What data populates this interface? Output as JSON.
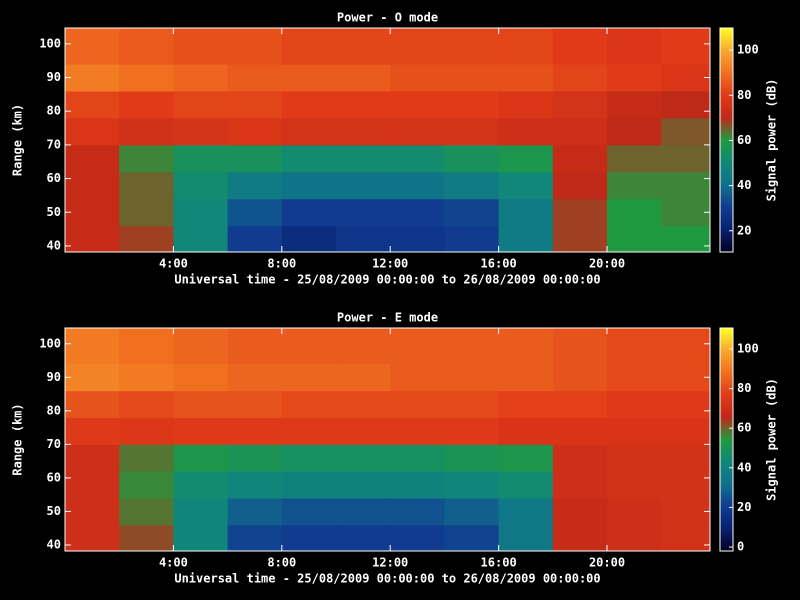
{
  "chart_data": [
    {
      "type": "heatmap",
      "title": "Power - O mode",
      "xlabel": "Universal time - 25/08/2009 00:00:00 to 26/08/2009 00:00:00",
      "ylabel": "Range (km)",
      "colorbar_label": "Signal power (dB)",
      "x": [
        1,
        3,
        5,
        7,
        9,
        11,
        13,
        15,
        17,
        19,
        21,
        23
      ],
      "y": [
        42,
        50,
        58,
        66,
        74,
        82,
        90,
        98
      ],
      "values": [
        [
          72,
          68,
          50,
          30,
          25,
          28,
          28,
          30,
          45,
          68,
          60,
          60
        ],
        [
          72,
          65,
          50,
          35,
          30,
          30,
          30,
          32,
          45,
          68,
          60,
          62
        ],
        [
          72,
          65,
          52,
          45,
          42,
          42,
          42,
          45,
          50,
          70,
          62,
          62
        ],
        [
          72,
          62,
          55,
          55,
          52,
          52,
          52,
          55,
          58,
          72,
          65,
          65
        ],
        [
          78,
          75,
          76,
          78,
          76,
          76,
          76,
          76,
          74,
          74,
          70,
          66
        ],
        [
          82,
          80,
          82,
          82,
          80,
          80,
          80,
          80,
          78,
          76,
          72,
          70
        ],
        [
          92,
          90,
          88,
          86,
          86,
          86,
          84,
          84,
          84,
          82,
          80,
          78
        ],
        [
          88,
          86,
          84,
          84,
          82,
          82,
          82,
          82,
          82,
          80,
          78,
          80
        ]
      ],
      "xlim": [
        0,
        23.8
      ],
      "ylim": [
        38.2,
        104.7
      ],
      "zlim": [
        10.6,
        109.8
      ],
      "xticks": [
        {
          "value": 4,
          "label": "4:00"
        },
        {
          "value": 8,
          "label": "8:00"
        },
        {
          "value": 12,
          "label": "12:00"
        },
        {
          "value": 16,
          "label": "16:00"
        },
        {
          "value": 20,
          "label": "20:00"
        }
      ],
      "yticks": [
        40,
        50,
        60,
        70,
        80,
        90,
        100
      ],
      "zticks": [
        20,
        40,
        60,
        80,
        100
      ],
      "colorscale": [
        "#000020",
        "#082070",
        "#103c90",
        "#10708c",
        "#108878",
        "#209a40",
        "#c02818",
        "#e03a18",
        "#f07020",
        "#f8a830",
        "#ffff20"
      ]
    },
    {
      "type": "heatmap",
      "title": "Power - E mode",
      "xlabel": "Universal time - 25/08/2009 00:00:00 to 26/08/2009 00:00:00",
      "ylabel": "Range (km)",
      "colorbar_label": "Signal power (dB)",
      "x": [
        1,
        3,
        5,
        7,
        9,
        11,
        13,
        15,
        17,
        19,
        21,
        23
      ],
      "y": [
        42,
        50,
        58,
        66,
        74,
        82,
        90,
        98
      ],
      "values": [
        [
          70,
          62,
          42,
          22,
          20,
          20,
          20,
          22,
          35,
          68,
          70,
          72
        ],
        [
          70,
          58,
          42,
          28,
          25,
          25,
          25,
          28,
          35,
          68,
          70,
          72
        ],
        [
          70,
          56,
          45,
          42,
          40,
          40,
          40,
          42,
          45,
          70,
          72,
          72
        ],
        [
          70,
          58,
          52,
          50,
          48,
          48,
          48,
          50,
          52,
          70,
          72,
          72
        ],
        [
          76,
          75,
          76,
          76,
          76,
          76,
          76,
          76,
          74,
          74,
          74,
          74
        ],
        [
          82,
          80,
          82,
          82,
          80,
          80,
          80,
          80,
          78,
          78,
          76,
          76
        ],
        [
          92,
          90,
          88,
          86,
          86,
          86,
          84,
          84,
          84,
          82,
          80,
          80
        ],
        [
          90,
          88,
          86,
          84,
          84,
          84,
          84,
          84,
          84,
          82,
          80,
          80
        ]
      ],
      "xlim": [
        0,
        23.8
      ],
      "ylim": [
        38.2,
        104.7
      ],
      "zlim": [
        -2,
        110.6
      ],
      "xticks": [
        {
          "value": 4,
          "label": "4:00"
        },
        {
          "value": 8,
          "label": "8:00"
        },
        {
          "value": 12,
          "label": "12:00"
        },
        {
          "value": 16,
          "label": "16:00"
        },
        {
          "value": 20,
          "label": "20:00"
        }
      ],
      "yticks": [
        40,
        50,
        60,
        70,
        80,
        90,
        100
      ],
      "zticks": [
        0,
        20,
        40,
        60,
        80,
        100
      ],
      "colorscale": [
        "#000020",
        "#082070",
        "#103c90",
        "#10708c",
        "#108878",
        "#209a40",
        "#c02818",
        "#e03a18",
        "#f07020",
        "#f8a830",
        "#ffff20"
      ]
    }
  ]
}
